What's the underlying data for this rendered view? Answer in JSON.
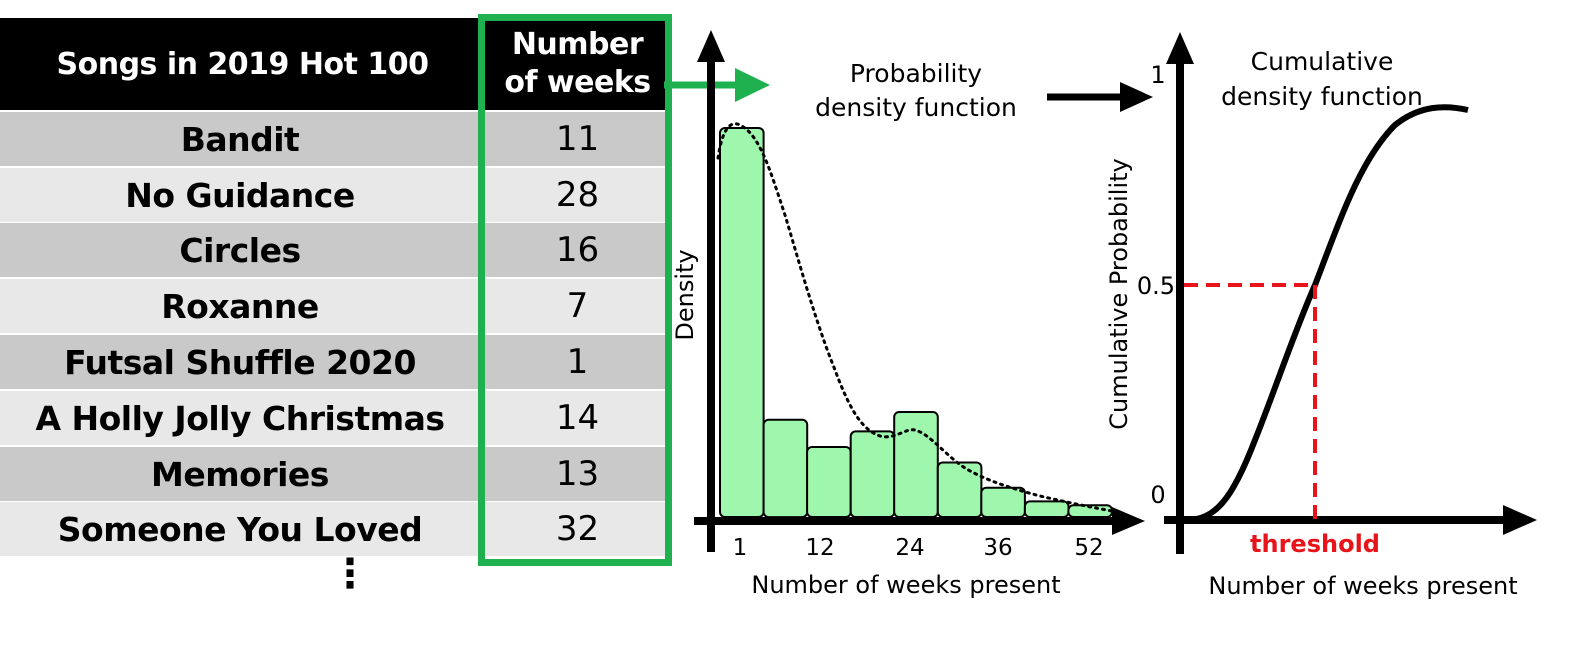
{
  "table": {
    "header_song": "Songs in 2019 Hot 100",
    "header_weeks_line1": "Number",
    "header_weeks_line2": "of weeks",
    "rows": [
      {
        "song": "Bandit",
        "weeks": "11"
      },
      {
        "song": "No Guidance",
        "weeks": "28"
      },
      {
        "song": "Circles",
        "weeks": "16"
      },
      {
        "song": "Roxanne",
        "weeks": "7"
      },
      {
        "song": "Futsal Shuffle 2020",
        "weeks": "1"
      },
      {
        "song": "A Holly Jolly Christmas",
        "weeks": "14"
      },
      {
        "song": "Memories",
        "weeks": "13"
      },
      {
        "song": "Someone You Loved",
        "weeks": "32"
      }
    ],
    "ellipsis": "⋮"
  },
  "colors": {
    "highlight": "#1fb04f",
    "bar_fill": "#9ef7ad",
    "threshold": "#e8141c"
  },
  "chart_data": [
    {
      "type": "bar",
      "title_line1": "Probability",
      "title_line2": "density function",
      "xlabel": "Number of weeks present",
      "ylabel": "Density",
      "tick_labels": [
        "1",
        "12",
        "24",
        "36",
        "52"
      ],
      "bins": 9,
      "values": [
        1.0,
        0.25,
        0.18,
        0.22,
        0.27,
        0.14,
        0.075,
        0.04,
        0.03
      ],
      "density_curve": "dotted"
    },
    {
      "type": "line",
      "title_line1": "Cumulative",
      "title_line2": "density function",
      "xlabel": "Number of weeks present",
      "ylabel": "Cumulative Probability",
      "y_ticks": [
        "1",
        "0.5",
        "0"
      ],
      "threshold_label": "threshold",
      "threshold_y": 0.5
    }
  ]
}
